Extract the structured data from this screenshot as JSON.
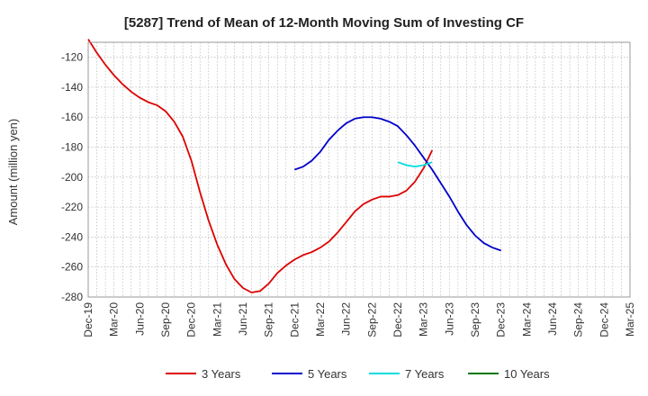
{
  "chart_data": {
    "type": "line",
    "title": "[5287]  Trend of Mean of 12-Month Moving Sum of Investing CF",
    "xlabel": "",
    "ylabel": "Amount (million yen)",
    "ylim": [
      -280,
      -110
    ],
    "yticks": [
      -120,
      -140,
      -160,
      -180,
      -200,
      -220,
      -240,
      -260,
      -280
    ],
    "ytick_labels": [
      "-120",
      "-140",
      "-160",
      "-180",
      "-200",
      "-220",
      "-240",
      "-260",
      "-280"
    ],
    "x_start": "Dec-19",
    "x_end": "Mar-25",
    "x_tick_labels": [
      "Dec-19",
      "Mar-20",
      "Jun-20",
      "Sep-20",
      "Dec-20",
      "Mar-21",
      "Jun-21",
      "Sep-21",
      "Dec-21",
      "Mar-22",
      "Jun-22",
      "Sep-22",
      "Dec-22",
      "Mar-23",
      "Jun-23",
      "Sep-23",
      "Dec-23",
      "Mar-24",
      "Jun-24",
      "Sep-24",
      "Dec-24",
      "Mar-25"
    ],
    "grid": true,
    "legend_position": "bottom",
    "series": [
      {
        "name": "3 Years",
        "color": "#dd0000",
        "start_index": 0,
        "values": [
          -108,
          -117,
          -125,
          -132,
          -138,
          -143,
          -147,
          -150,
          -152,
          -156,
          -163,
          -173,
          -189,
          -210,
          -229,
          -245,
          -258,
          -268,
          -274,
          -277,
          -276,
          -271,
          -264,
          -259,
          -255,
          -252,
          -250,
          -247,
          -243,
          -237,
          -230,
          -223,
          -218,
          -215,
          -213,
          -213,
          -212,
          -209,
          -203,
          -194,
          -182
        ]
      },
      {
        "name": "5 Years",
        "color": "#0000cc",
        "start_index": 24,
        "values": [
          -195,
          -193,
          -189,
          -183,
          -175,
          -169,
          -164,
          -161,
          -160,
          -160,
          -161,
          -163,
          -166,
          -172,
          -179,
          -187,
          -195,
          -204,
          -213,
          -223,
          -232,
          -239,
          -244,
          -247,
          -249
        ]
      },
      {
        "name": "7 Years",
        "color": "#00dddd",
        "start_index": 36,
        "values": [
          -190,
          -192,
          -193,
          -192,
          -190
        ]
      },
      {
        "name": "10 Years",
        "color": "#007700",
        "start_index": 0,
        "values": []
      }
    ]
  }
}
